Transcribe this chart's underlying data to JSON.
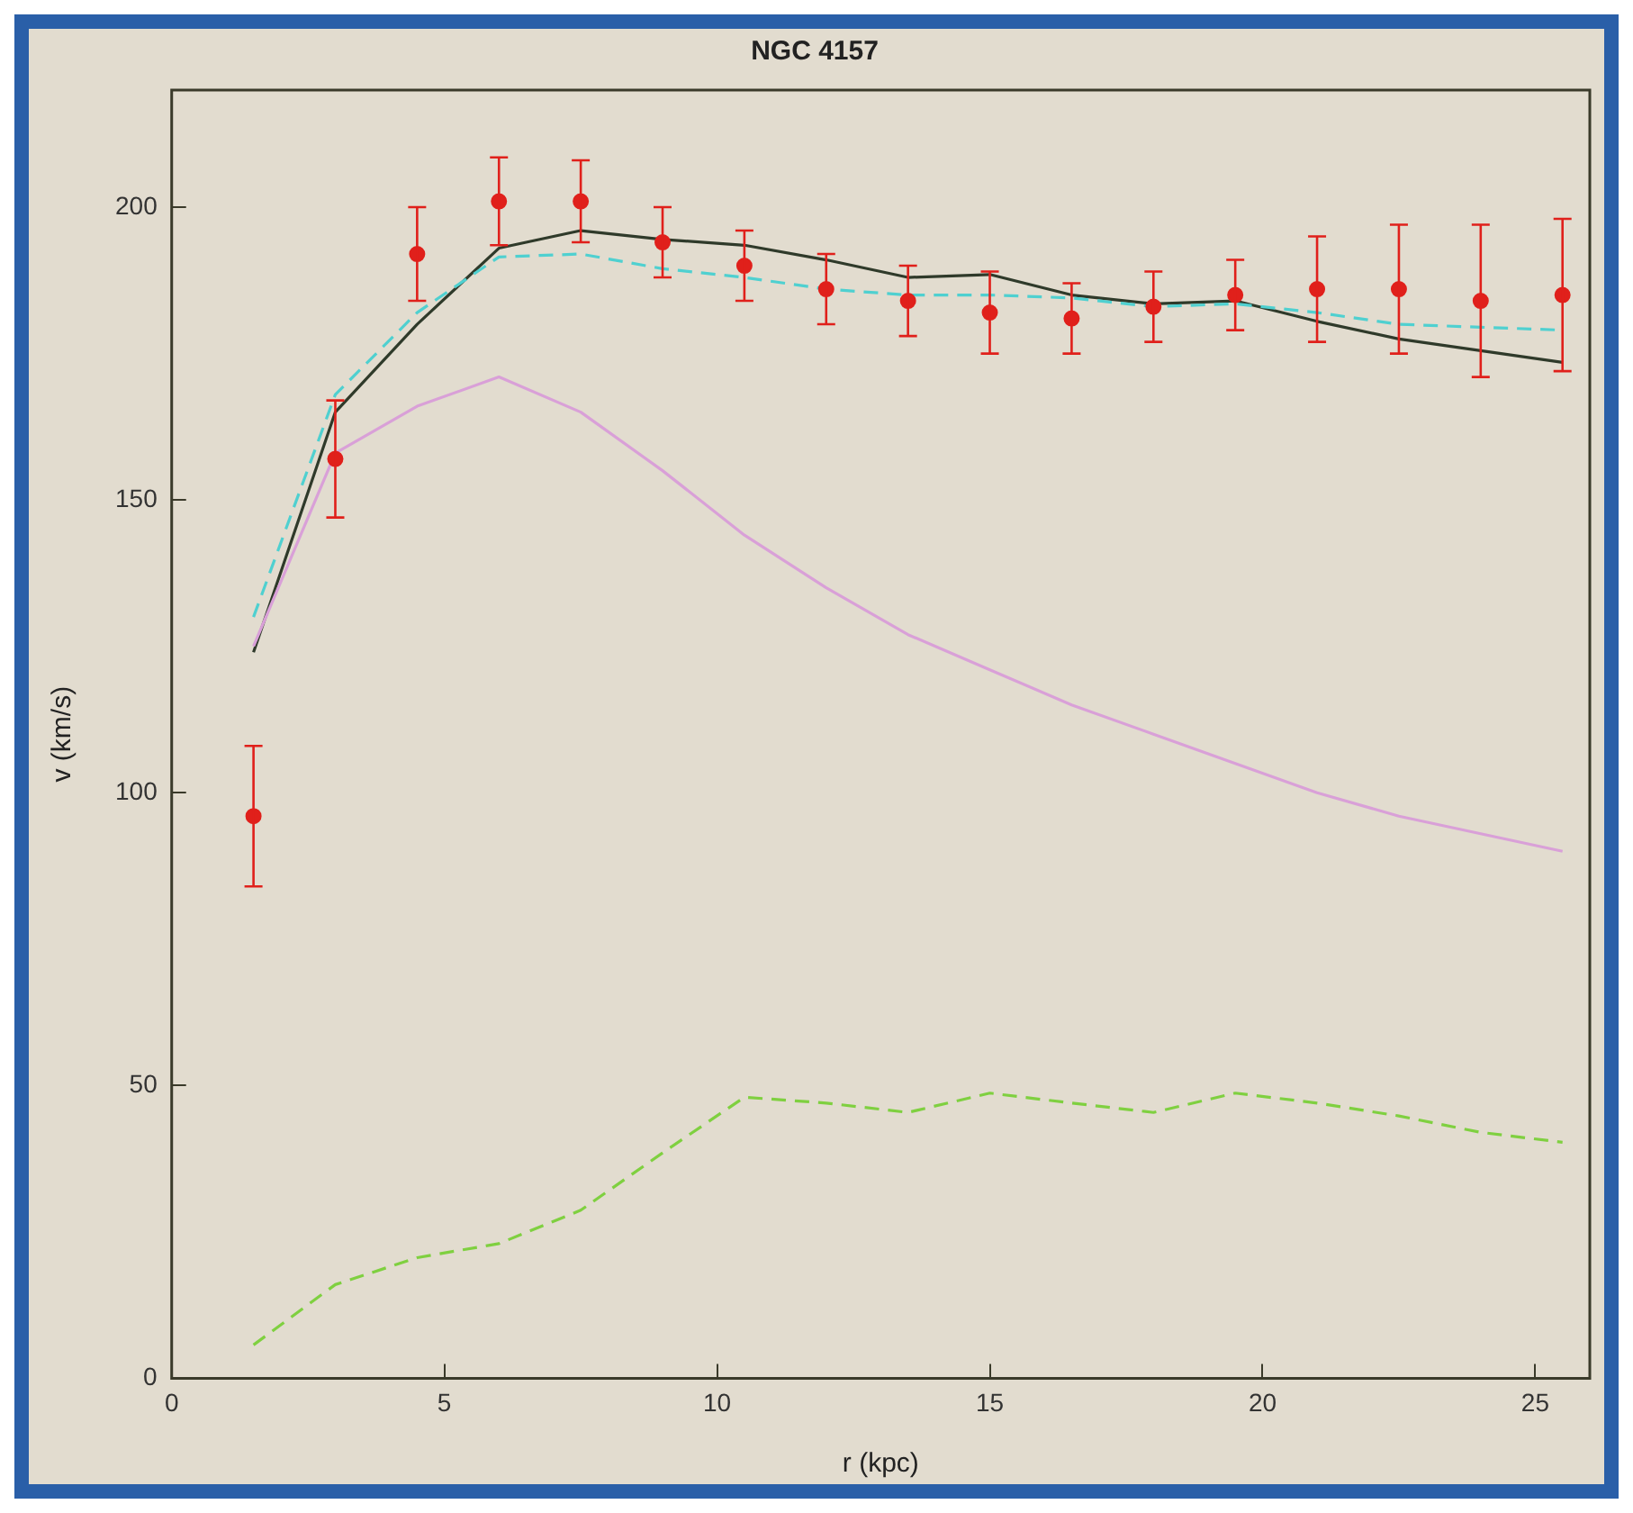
{
  "chart_data": {
    "type": "line",
    "title": "NGC 4157",
    "xlabel": "r (kpc)",
    "ylabel": "v (km/s)",
    "x": [
      1.5,
      3,
      4.5,
      6,
      7.5,
      9,
      10.5,
      12,
      13.5,
      15,
      16.5,
      18,
      19.5,
      21,
      22.5,
      24,
      25.5
    ],
    "xlim": [
      0,
      26
    ],
    "xticks": [
      0,
      5,
      10,
      15,
      20,
      25
    ],
    "ylim": [
      0,
      220
    ],
    "yticks": [
      0,
      50,
      100,
      150,
      200
    ],
    "grid": false,
    "legend": false,
    "series": [
      {
        "type": "scatter",
        "color": "#e0201b",
        "marker": "circle",
        "values": [
          96,
          157,
          192,
          201,
          201,
          194,
          190,
          186,
          184,
          182,
          181,
          183,
          185,
          186,
          186,
          184,
          185
        ],
        "errors": [
          12,
          10,
          8,
          7.5,
          7,
          6,
          6,
          6,
          6,
          7,
          6,
          6,
          6,
          9,
          11,
          13,
          13
        ]
      },
      {
        "color": "#d9a0d8",
        "line_style": "solid",
        "marker": "none",
        "values": [
          125,
          158,
          166,
          171,
          165,
          155,
          144,
          135,
          127,
          121,
          115,
          110,
          105,
          100,
          96,
          93,
          90
        ]
      },
      {
        "color": "#7fd040",
        "line_style": "dashed",
        "marker": "none",
        "values": [
          5.7,
          16,
          20.6,
          23,
          28.7,
          38.5,
          48,
          47,
          45.4,
          48.7,
          47,
          45.4,
          48.7,
          47,
          44.8,
          42,
          40.3
        ]
      },
      {
        "color": "#4fd0d0",
        "line_style": "dashed",
        "marker": "none",
        "values": [
          130,
          168,
          182,
          191.5,
          192,
          189.5,
          188,
          186,
          185,
          185,
          184.5,
          183,
          183.5,
          182,
          180,
          179.5,
          179
        ]
      },
      {
        "color": "#2f3a2a",
        "line_style": "solid",
        "marker": "none",
        "values": [
          124,
          165,
          180,
          193,
          196,
          194.5,
          193.5,
          191,
          188,
          188.5,
          185,
          183.5,
          184,
          180.5,
          177.5,
          175.5,
          173.5
        ]
      }
    ]
  }
}
